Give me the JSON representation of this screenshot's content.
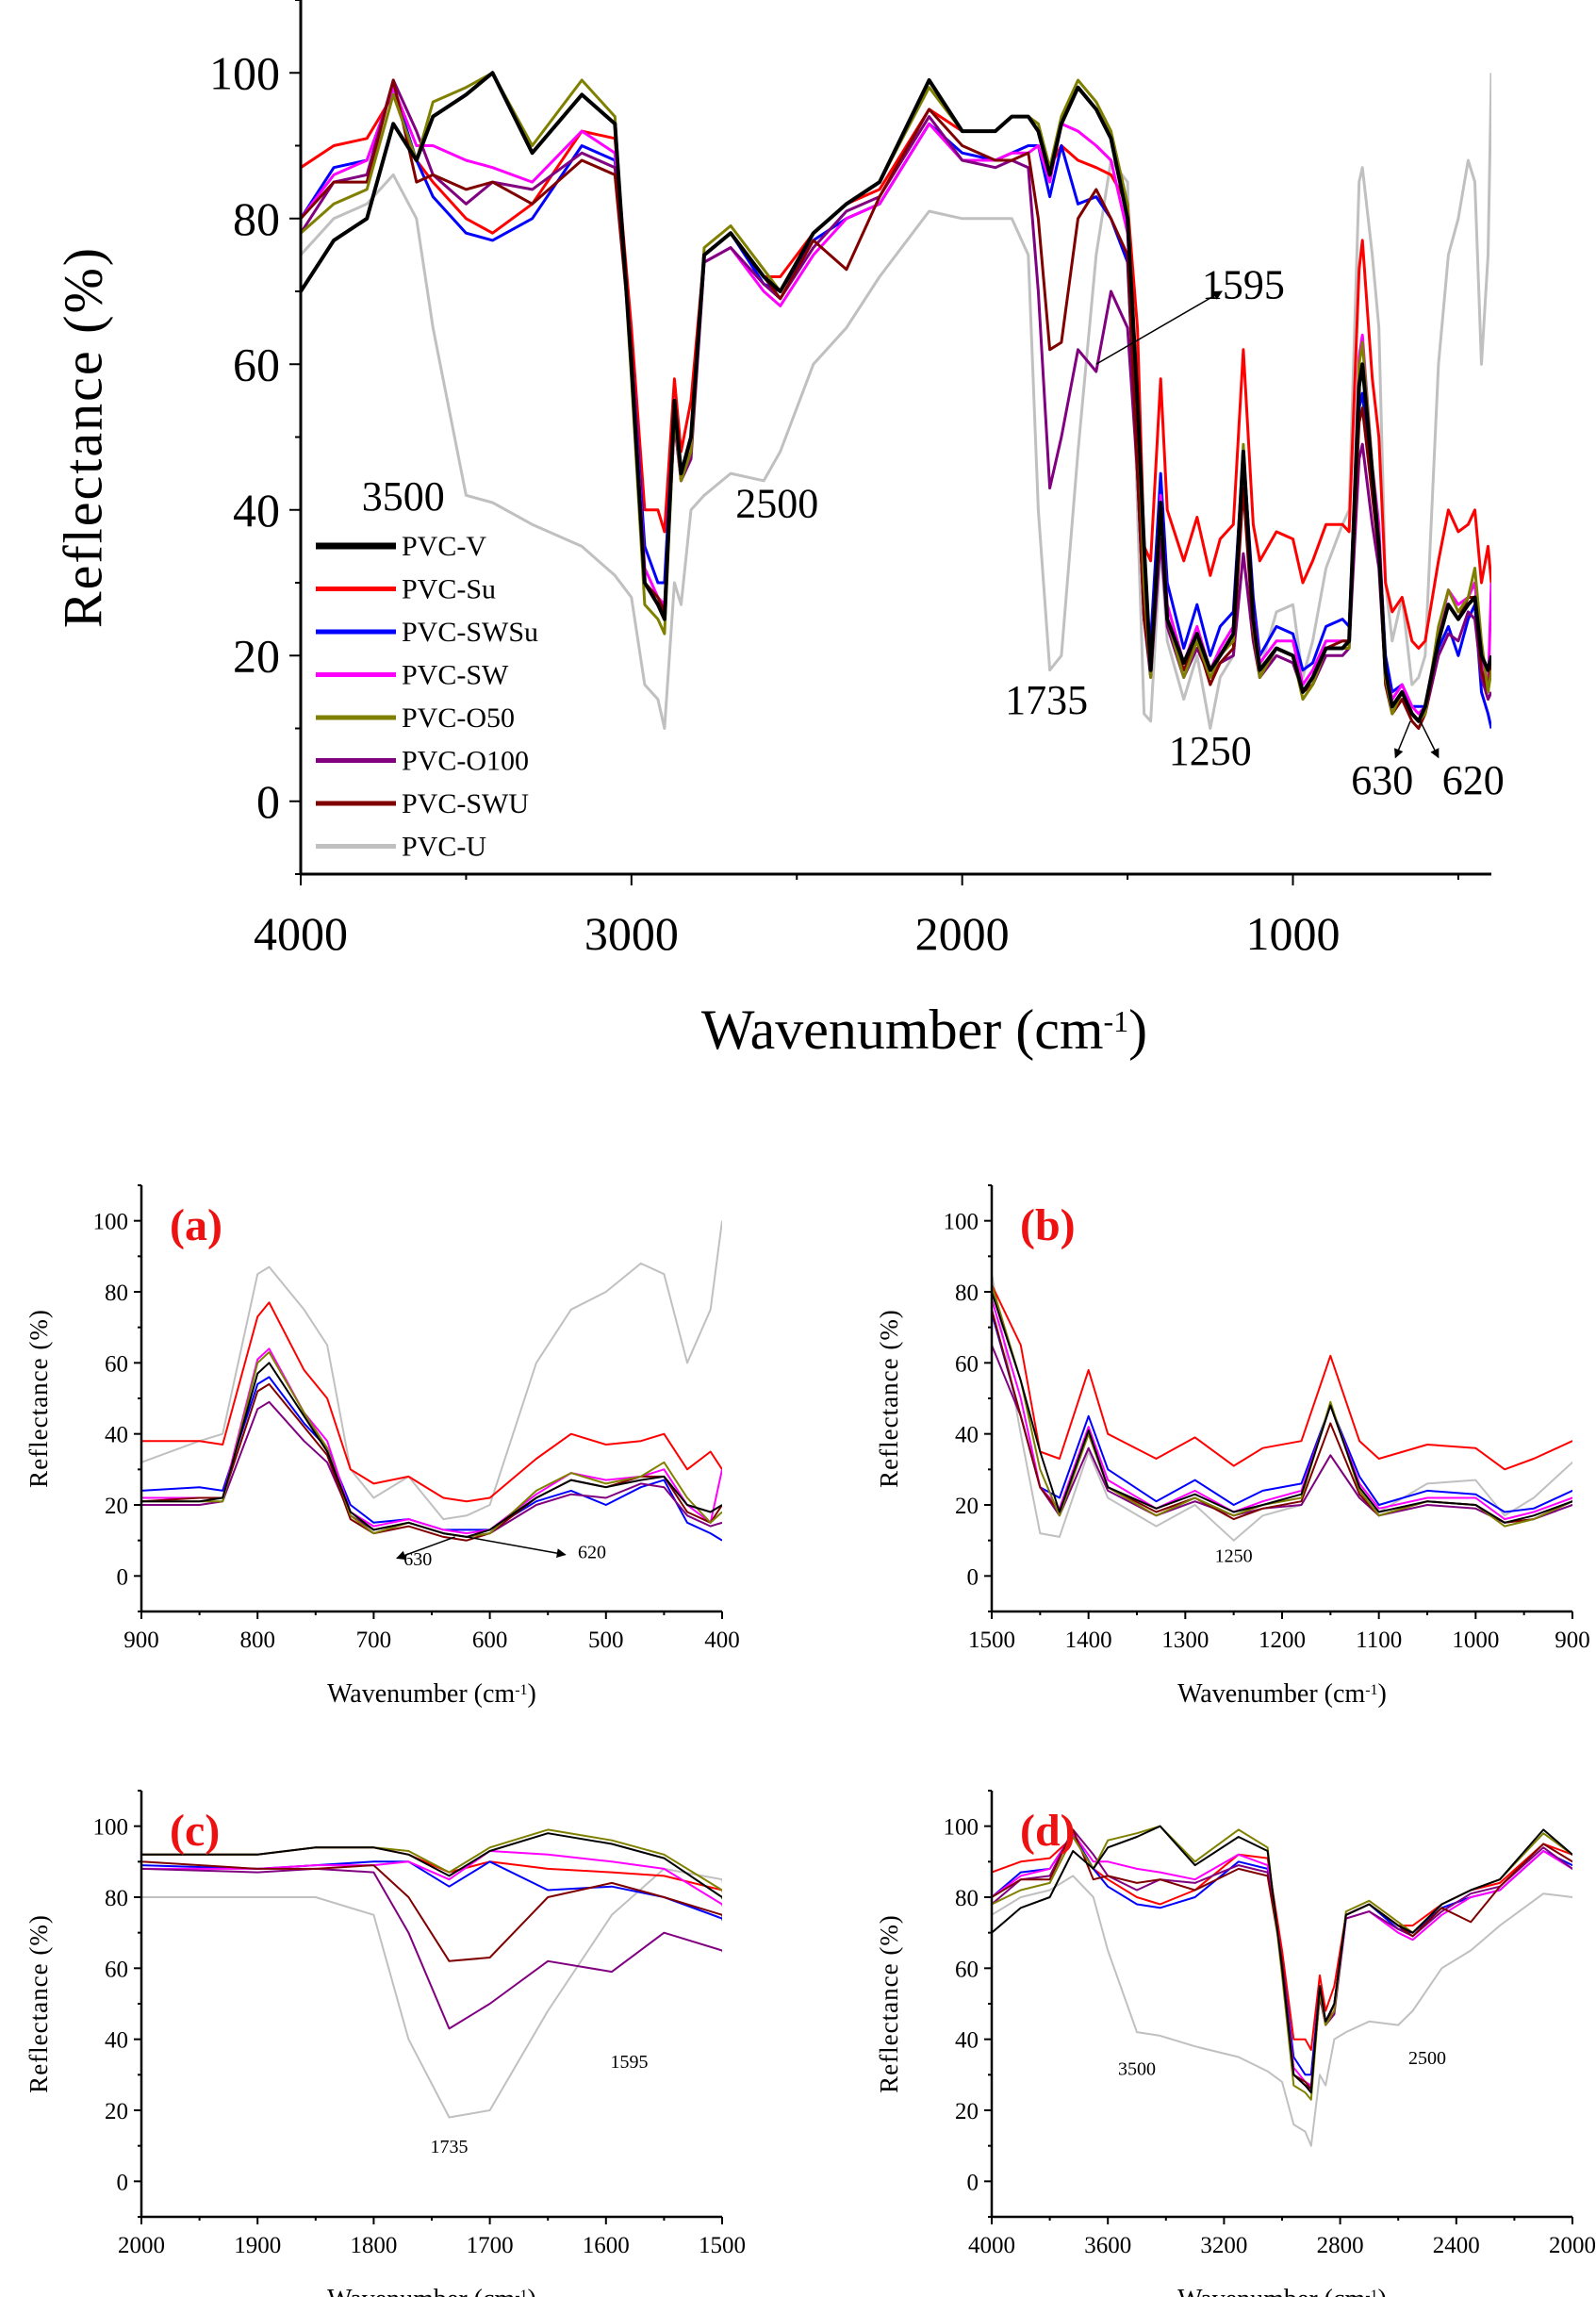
{
  "chart_data": {
    "type": "line",
    "x": [
      4000,
      3900,
      3800,
      3720,
      3650,
      3600,
      3500,
      3420,
      3300,
      3150,
      3050,
      3000,
      2960,
      2920,
      2900,
      2870,
      2850,
      2820,
      2780,
      2700,
      2600,
      2550,
      2450,
      2350,
      2250,
      2100,
      2000,
      1900,
      1850,
      1800,
      1770,
      1735,
      1700,
      1650,
      1595,
      1550,
      1500,
      1470,
      1450,
      1430,
      1400,
      1380,
      1330,
      1290,
      1250,
      1220,
      1180,
      1150,
      1120,
      1100,
      1050,
      1000,
      970,
      940,
      900,
      850,
      830,
      800,
      790,
      760,
      740,
      720,
      700,
      670,
      640,
      620,
      600,
      560,
      530,
      500,
      470,
      450,
      430,
      410,
      400
    ],
    "series": [
      {
        "name": "PVC-V",
        "color": "#000000",
        "values": [
          70,
          77,
          80,
          93,
          88,
          94,
          97,
          100,
          89,
          97,
          93,
          60,
          30,
          27,
          25,
          55,
          45,
          50,
          75,
          78,
          72,
          70,
          78,
          82,
          85,
          99,
          92,
          92,
          94,
          94,
          92,
          86,
          93,
          98,
          95,
          91,
          80,
          55,
          35,
          18,
          41,
          25,
          19,
          23,
          18,
          20,
          23,
          48,
          25,
          18,
          21,
          20,
          15,
          17,
          21,
          21,
          22,
          57,
          60,
          45,
          35,
          18,
          13,
          15,
          12,
          11,
          13,
          22,
          27,
          25,
          27,
          28,
          20,
          18,
          20
        ]
      },
      {
        "name": "PVC-Su",
        "color": "#ff0000",
        "values": [
          87,
          90,
          91,
          97,
          88,
          85,
          80,
          78,
          82,
          92,
          91,
          65,
          40,
          40,
          37,
          58,
          48,
          55,
          75,
          78,
          72,
          72,
          78,
          82,
          84,
          95,
          92,
          92,
          94,
          94,
          92,
          87,
          90,
          88,
          87,
          86,
          82,
          65,
          35,
          33,
          58,
          40,
          33,
          39,
          31,
          36,
          38,
          62,
          38,
          33,
          37,
          36,
          30,
          33,
          38,
          38,
          37,
          73,
          77,
          58,
          50,
          30,
          26,
          28,
          22,
          21,
          22,
          33,
          40,
          37,
          38,
          40,
          30,
          35,
          30
        ]
      },
      {
        "name": "PVC-SWSu",
        "color": "#0000ff",
        "values": [
          80,
          87,
          88,
          98,
          88,
          83,
          78,
          77,
          80,
          90,
          88,
          62,
          35,
          30,
          30,
          55,
          45,
          50,
          75,
          78,
          71,
          70,
          77,
          80,
          82,
          93,
          89,
          88,
          89,
          90,
          90,
          83,
          90,
          82,
          83,
          80,
          74,
          45,
          25,
          22,
          45,
          30,
          21,
          27,
          20,
          24,
          26,
          48,
          28,
          20,
          24,
          23,
          18,
          19,
          24,
          25,
          24,
          54,
          56,
          43,
          36,
          20,
          15,
          16,
          13,
          13,
          13,
          21,
          24,
          20,
          25,
          27,
          15,
          12,
          10
        ]
      },
      {
        "name": "PVC-SW",
        "color": "#ff00ff",
        "values": [
          80,
          86,
          88,
          98,
          90,
          90,
          88,
          87,
          85,
          92,
          89,
          62,
          32,
          28,
          27,
          52,
          44,
          48,
          74,
          76,
          70,
          68,
          75,
          80,
          82,
          93,
          88,
          88,
          89,
          89,
          90,
          85,
          93,
          92,
          90,
          88,
          78,
          50,
          25,
          19,
          42,
          27,
          19,
          24,
          18,
          21,
          24,
          48,
          26,
          19,
          22,
          22,
          16,
          18,
          22,
          22,
          22,
          61,
          64,
          46,
          38,
          18,
          14,
          16,
          13,
          12,
          13,
          23,
          29,
          27,
          28,
          30,
          20,
          15,
          30
        ]
      },
      {
        "name": "PVC-O50",
        "color": "#808000",
        "values": [
          78,
          82,
          84,
          97,
          88,
          96,
          98,
          100,
          90,
          99,
          94,
          58,
          27,
          25,
          23,
          53,
          44,
          48,
          76,
          79,
          73,
          70,
          78,
          82,
          85,
          98,
          92,
          92,
          94,
          94,
          93,
          87,
          94,
          99,
          96,
          92,
          82,
          55,
          30,
          17,
          40,
          25,
          17,
          22,
          17,
          20,
          22,
          49,
          24,
          17,
          21,
          20,
          14,
          16,
          21,
          21,
          21,
          60,
          63,
          46,
          36,
          17,
          12,
          15,
          12,
          11,
          12,
          24,
          29,
          26,
          28,
          32,
          22,
          15,
          18
        ]
      },
      {
        "name": "PVC-O100",
        "color": "#800080",
        "values": [
          78,
          85,
          86,
          99,
          92,
          86,
          82,
          85,
          84,
          89,
          87,
          62,
          30,
          27,
          26,
          52,
          44,
          47,
          74,
          76,
          71,
          69,
          76,
          81,
          83,
          94,
          88,
          87,
          88,
          87,
          70,
          43,
          50,
          62,
          59,
          70,
          65,
          45,
          25,
          17,
          36,
          24,
          17,
          21,
          17,
          19,
          20,
          34,
          22,
          17,
          20,
          19,
          15,
          16,
          20,
          20,
          21,
          47,
          49,
          38,
          32,
          17,
          13,
          15,
          12,
          11,
          12,
          20,
          23,
          22,
          26,
          25,
          17,
          14,
          15
        ]
      },
      {
        "name": "PVC-SWU",
        "color": "#800000",
        "values": [
          80,
          85,
          85,
          99,
          85,
          86,
          84,
          85,
          82,
          88,
          86,
          62,
          30,
          28,
          26,
          55,
          44,
          50,
          75,
          78,
          72,
          69,
          77,
          73,
          83,
          95,
          90,
          88,
          88,
          89,
          80,
          62,
          63,
          80,
          84,
          80,
          75,
          45,
          25,
          18,
          40,
          25,
          18,
          22,
          16,
          19,
          21,
          43,
          23,
          17,
          21,
          20,
          15,
          16,
          21,
          22,
          22,
          52,
          54,
          42,
          34,
          16,
          12,
          14,
          11,
          10,
          12,
          22,
          27,
          25,
          28,
          28,
          18,
          15,
          20
        ]
      },
      {
        "name": "PVC-U",
        "color": "#c0c0c0",
        "values": [
          75,
          80,
          82,
          86,
          80,
          65,
          42,
          41,
          38,
          35,
          31,
          28,
          16,
          14,
          10,
          30,
          27,
          40,
          42,
          45,
          44,
          48,
          60,
          65,
          72,
          81,
          80,
          80,
          80,
          75,
          40,
          18,
          20,
          48,
          75,
          88,
          85,
          40,
          12,
          11,
          35,
          22,
          14,
          20,
          10,
          17,
          20,
          34,
          22,
          18,
          26,
          27,
          17,
          22,
          32,
          38,
          40,
          85,
          87,
          75,
          65,
          30,
          22,
          28,
          16,
          17,
          20,
          60,
          75,
          80,
          88,
          85,
          60,
          75,
          100
        ]
      }
    ],
    "ylabel": "Reflectance (%)",
    "xlabel_main": "Wavenumber (cm",
    "xlabel_sup": "-1",
    "xlabel_close": ")",
    "ylim": [
      -10,
      110
    ],
    "grid": false,
    "legend_placement": "bottom-left",
    "panels": [
      {
        "id": "main",
        "label": "",
        "xlim": [
          4000,
          400
        ],
        "xticks": [
          4000,
          3000,
          2000,
          1000
        ],
        "yticks": [
          0,
          20,
          40,
          60,
          80,
          100
        ],
        "annotations": [
          {
            "text": "3500",
            "x": 3690,
            "y": 40
          },
          {
            "text": "2500",
            "x": 2560,
            "y": 39
          },
          {
            "text": "1735",
            "x": 1745,
            "y": 12
          },
          {
            "text": "1250",
            "x": 1250,
            "y": 5
          },
          {
            "text": "1595",
            "x": 1150,
            "y": 69
          },
          {
            "text": "630",
            "x": 730,
            "y": 1
          },
          {
            "text": "620",
            "x": 455,
            "y": 1
          }
        ],
        "arrows": [
          {
            "from": [
              1595,
              60
            ],
            "to": [
              1215,
              70
            ]
          },
          {
            "from": [
              645,
              11
            ],
            "to": [
              690,
              6
            ]
          },
          {
            "from": [
              615,
              11
            ],
            "to": [
              560,
              6
            ]
          }
        ]
      },
      {
        "id": "a",
        "label": "(a)",
        "xlim": [
          900,
          400
        ],
        "xticks": [
          900,
          800,
          700,
          600,
          500,
          400
        ],
        "yticks": [
          0,
          20,
          40,
          60,
          80,
          100
        ],
        "annotations": [
          {
            "text": "630",
            "x": 662,
            "y": 3
          },
          {
            "text": "620",
            "x": 512,
            "y": 5
          }
        ],
        "arrows": [
          {
            "from": [
              630,
              11
            ],
            "to": [
              680,
              5
            ]
          },
          {
            "from": [
              620,
              11
            ],
            "to": [
              535,
              6
            ]
          }
        ]
      },
      {
        "id": "b",
        "label": "(b)",
        "xlim": [
          1500,
          900
        ],
        "xticks": [
          1500,
          1400,
          1300,
          1200,
          1100,
          1000,
          900
        ],
        "yticks": [
          0,
          20,
          40,
          60,
          80,
          100
        ],
        "annotations": [
          {
            "text": "1250",
            "x": 1250,
            "y": 4
          }
        ],
        "arrows": []
      },
      {
        "id": "c",
        "label": "(c)",
        "xlim": [
          2000,
          1500
        ],
        "xticks": [
          2000,
          1900,
          1800,
          1700,
          1600,
          1500
        ],
        "yticks": [
          0,
          20,
          40,
          60,
          80,
          100
        ],
        "annotations": [
          {
            "text": "1735",
            "x": 1735,
            "y": 8
          },
          {
            "text": "1595",
            "x": 1580,
            "y": 32
          }
        ],
        "arrows": []
      },
      {
        "id": "d",
        "label": "(d)",
        "xlim": [
          4000,
          2000
        ],
        "xticks": [
          4000,
          3600,
          3200,
          2800,
          2400,
          2000
        ],
        "yticks": [
          0,
          20,
          40,
          60,
          80,
          100
        ],
        "annotations": [
          {
            "text": "3500",
            "x": 3500,
            "y": 30
          },
          {
            "text": "2500",
            "x": 2500,
            "y": 33
          }
        ],
        "arrows": []
      }
    ]
  }
}
